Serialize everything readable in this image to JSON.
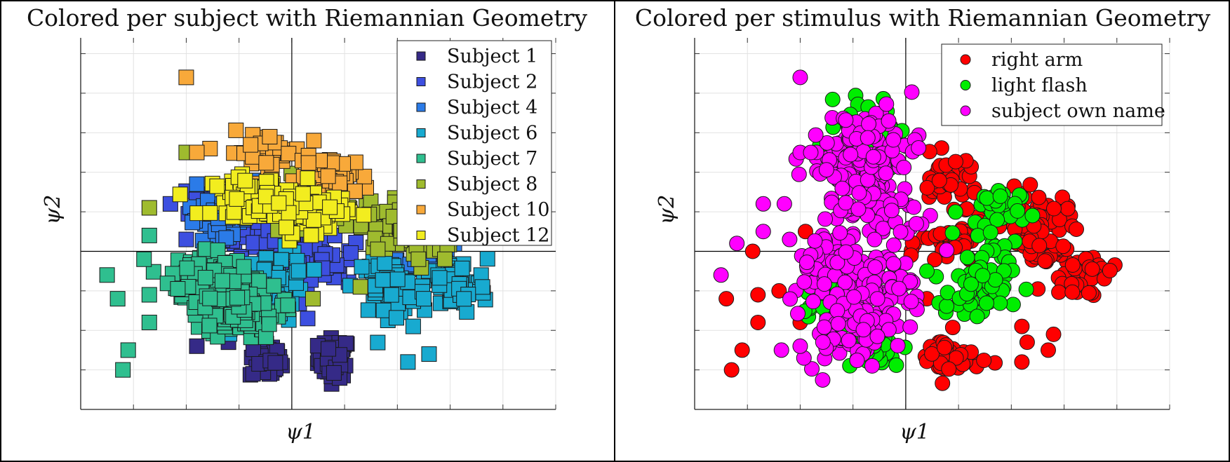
{
  "chart_data": [
    {
      "type": "scatter",
      "title": "Colored per subject with Riemannian Geometry",
      "xlabel": "ψ1",
      "ylabel": "ψ2",
      "xlim": [
        -4,
        5
      ],
      "ylim": [
        -4,
        5.4
      ],
      "grid": true,
      "legend_position": "top-right",
      "marker": "square",
      "series": [
        {
          "name": "Subject 1",
          "color": "#352a87",
          "centers": [
            [
              0.8,
              -2.7
            ],
            [
              -0.5,
              -2.75
            ]
          ],
          "spread": [
            0.15,
            0.25
          ],
          "count": 60,
          "outliers": [
            [
              -1.8,
              -2.4
            ],
            [
              -1.2,
              -2.3
            ]
          ]
        },
        {
          "name": "Subject 2",
          "color": "#3d4fe0",
          "centers": [
            [
              -1.2,
              1.2
            ],
            [
              -0.6,
              0.5
            ],
            [
              0.5,
              -0.3
            ]
          ],
          "spread": [
            0.35,
            0.3
          ],
          "count": 50,
          "outliers": [
            [
              -2.3,
              1.2
            ],
            [
              -2,
              0.3
            ],
            [
              0.3,
              -1.7
            ]
          ]
        },
        {
          "name": "Subject 4",
          "color": "#2b7be8",
          "centers": [
            [
              -1.4,
              0.8
            ],
            [
              -0.8,
              1.3
            ],
            [
              2.6,
              -0.2
            ]
          ],
          "spread": [
            0.3,
            0.25
          ],
          "count": 40,
          "outliers": [
            [
              -1.8,
              1.7
            ]
          ]
        },
        {
          "name": "Subject 6",
          "color": "#18aad0",
          "centers": [
            [
              -0.5,
              -1.2
            ],
            [
              -0.3,
              -0.7
            ],
            [
              1.8,
              -0.9
            ],
            [
              3.1,
              -0.9
            ]
          ],
          "spread": [
            0.3,
            0.35
          ],
          "count": 60,
          "outliers": [
            [
              2.3,
              -1.9
            ],
            [
              2.6,
              -2.6
            ],
            [
              2.2,
              -2.8
            ],
            [
              2.5,
              -1.2
            ]
          ]
        },
        {
          "name": "Subject 7",
          "color": "#2fbf8f",
          "centers": [
            [
              -1.6,
              -0.6
            ],
            [
              -0.9,
              -1.5
            ],
            [
              -1.4,
              -1.1
            ]
          ],
          "spread": [
            0.35,
            0.35
          ],
          "count": 70,
          "outliers": [
            [
              -3.5,
              -0.6
            ],
            [
              -3.3,
              -1.2
            ],
            [
              -2.8,
              -0.2
            ],
            [
              -2.7,
              0.4
            ],
            [
              -2.7,
              -1.1
            ],
            [
              -2.7,
              -1.8
            ],
            [
              -3.1,
              -2.5
            ],
            [
              -3.2,
              -3
            ]
          ]
        },
        {
          "name": "Subject 8",
          "color": "#9fbb2e",
          "centers": [
            [
              1.7,
              0.6
            ],
            [
              2.3,
              0.5
            ],
            [
              0.2,
              1.2
            ]
          ],
          "spread": [
            0.3,
            0.35
          ],
          "count": 45,
          "outliers": [
            [
              2.4,
              -0.2
            ],
            [
              2.9,
              -0.2
            ],
            [
              0.4,
              -1.2
            ],
            [
              1.3,
              -0.9
            ],
            [
              -2.7,
              1.1
            ],
            [
              -2,
              2.5
            ]
          ]
        },
        {
          "name": "Subject 10",
          "color": "#f8a93a",
          "centers": [
            [
              -0.5,
              2.5
            ],
            [
              0.8,
              1.9
            ]
          ],
          "spread": [
            0.35,
            0.25
          ],
          "count": 45,
          "outliers": [
            [
              -2,
              4.4
            ],
            [
              -1.8,
              2.5
            ]
          ]
        },
        {
          "name": "Subject 12",
          "color": "#f2ed1f",
          "centers": [
            [
              -0.8,
              1.4
            ],
            [
              0.4,
              1.0
            ],
            [
              -0.1,
              1.2
            ]
          ],
          "spread": [
            0.35,
            0.25
          ],
          "count": 55,
          "outliers": []
        }
      ]
    },
    {
      "type": "scatter",
      "title": "Colored per stimulus with Riemannian Geometry",
      "xlabel": "ψ1",
      "ylabel": "ψ2",
      "xlim": [
        -4,
        5
      ],
      "ylim": [
        -4,
        5.4
      ],
      "grid": true,
      "legend_position": "top-right",
      "marker": "circle",
      "series": [
        {
          "name": "right arm",
          "color": "#ff0000",
          "centers": [
            [
              0.8,
              1.8
            ],
            [
              0.9,
              0.2
            ],
            [
              0.8,
              -2.7
            ],
            [
              2.5,
              0.9
            ],
            [
              3.3,
              -0.6
            ],
            [
              2.6,
              0.2
            ]
          ],
          "spread": [
            0.3,
            0.3
          ],
          "count": 40,
          "outliers": [
            [
              -3.3,
              -3
            ],
            [
              -3.1,
              -2.5
            ],
            [
              -3.4,
              -1.2
            ],
            [
              -2.8,
              -1.1
            ],
            [
              -2.8,
              -1.8
            ],
            [
              -2.4,
              -1.0
            ],
            [
              -2.0,
              -1.8
            ],
            [
              2.2,
              -1.9
            ],
            [
              2.3,
              -2.3
            ],
            [
              2.2,
              -2.8
            ],
            [
              2.7,
              -2.5
            ],
            [
              2.8,
              -2.1
            ],
            [
              0.4,
              -1.2
            ],
            [
              0.1,
              -0.1
            ],
            [
              -1.9,
              0.5
            ],
            [
              -2.9,
              0
            ]
          ]
        },
        {
          "name": "light flash",
          "color": "#00ee00",
          "centers": [
            [
              1.6,
              1.0
            ],
            [
              1.5,
              -0.6
            ],
            [
              1.3,
              -1.2
            ],
            [
              -0.6,
              -2.4
            ],
            [
              -0.7,
              3.2
            ],
            [
              -1.4,
              -1.3
            ]
          ],
          "spread": [
            0.28,
            0.35
          ],
          "count": 35,
          "outliers": [
            [
              -0.3,
              2.1
            ],
            [
              0.4,
              -0.5
            ]
          ]
        },
        {
          "name": "subject own name",
          "color": "#ff00ff",
          "centers": [
            [
              -0.9,
              2.1
            ],
            [
              -0.5,
              1.0
            ],
            [
              -1.3,
              -0.3
            ],
            [
              -0.5,
              -1.0
            ],
            [
              -1.1,
              -1.9
            ],
            [
              -0.6,
              2.8
            ]
          ],
          "spread": [
            0.45,
            0.45
          ],
          "count": 65,
          "outliers": [
            [
              -2,
              4.4
            ],
            [
              -2,
              2.5
            ],
            [
              -1.8,
              2.5
            ],
            [
              -3.5,
              -0.6
            ],
            [
              -3.2,
              0.2
            ],
            [
              -2.7,
              1.2
            ],
            [
              -2.3,
              1.2
            ],
            [
              -2.7,
              0.5
            ],
            [
              -2.2,
              0.3
            ],
            [
              0.2,
              0.7
            ],
            [
              -2,
              -2.4
            ]
          ]
        }
      ]
    }
  ]
}
